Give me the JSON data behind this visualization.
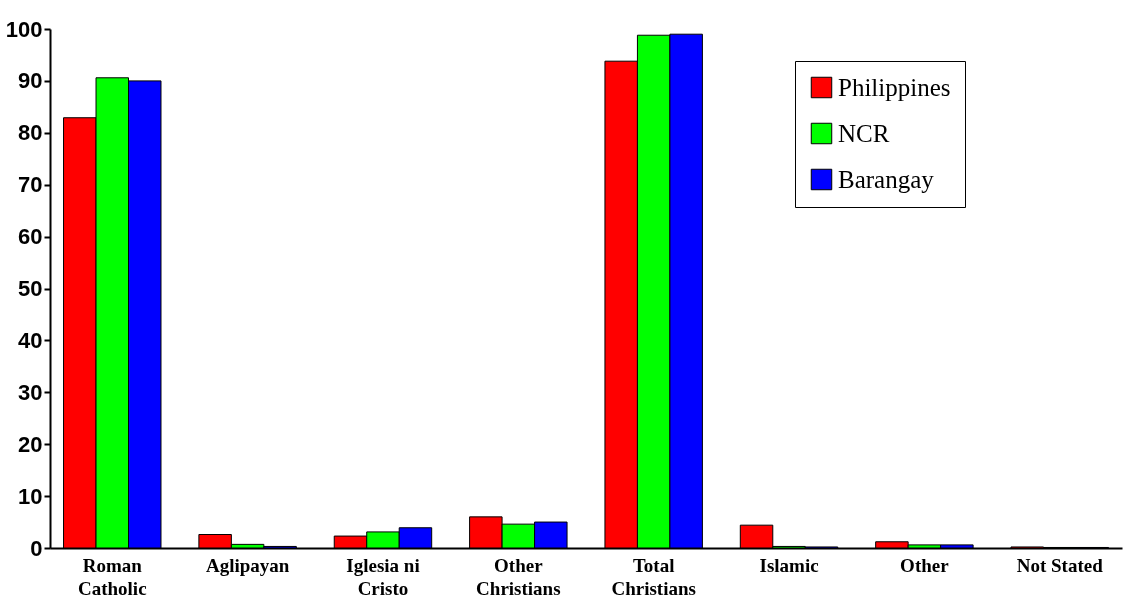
{
  "chart_data": {
    "type": "bar",
    "categories": [
      "Roman Catholic",
      "Aglipayan",
      "Iglesia ni Cristo",
      "Other Christians",
      "Total Christians",
      "Islamic",
      "Other",
      "Not Stated"
    ],
    "series": [
      {
        "name": "Philippines",
        "color": "#ff0000",
        "values": [
          82.9,
          2.6,
          2.3,
          6.0,
          93.8,
          4.4,
          1.2,
          0.2
        ]
      },
      {
        "name": "NCR",
        "color": "#00ff00",
        "values": [
          90.6,
          0.7,
          3.1,
          4.6,
          98.8,
          0.3,
          0.6,
          0.1
        ]
      },
      {
        "name": "Barangay",
        "color": "#0000ff",
        "values": [
          90.0,
          0.3,
          3.9,
          5.0,
          99.0,
          0.2,
          0.6,
          0.1
        ]
      }
    ],
    "ylim": [
      0,
      100
    ],
    "yticks": [
      0,
      10,
      20,
      30,
      40,
      50,
      60,
      70,
      80,
      90,
      100
    ],
    "grid": false,
    "legend": "top right"
  }
}
